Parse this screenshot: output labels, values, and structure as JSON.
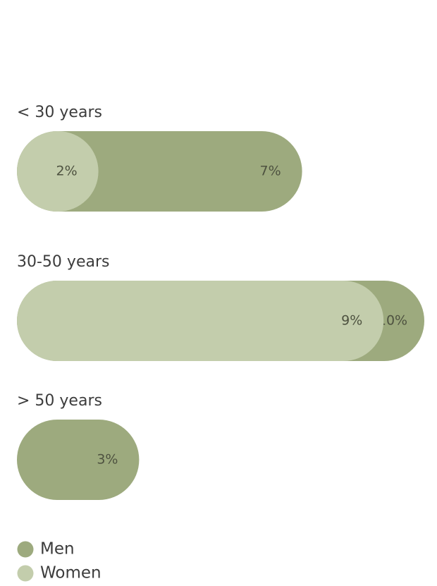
{
  "chart_data": {
    "type": "pill-bar",
    "categories": [
      "< 30 years",
      "30-50 years",
      "> 50 years"
    ],
    "series": [
      {
        "name": "Men",
        "color": "#9daa7e",
        "values": [
          7,
          10,
          3
        ],
        "value_labels": [
          "7%",
          "10%",
          "3%"
        ]
      },
      {
        "name": "Women",
        "color": "#c3cdac",
        "values": [
          2,
          9,
          null
        ],
        "value_labels": [
          "2%",
          "9%",
          null
        ]
      }
    ]
  }
}
